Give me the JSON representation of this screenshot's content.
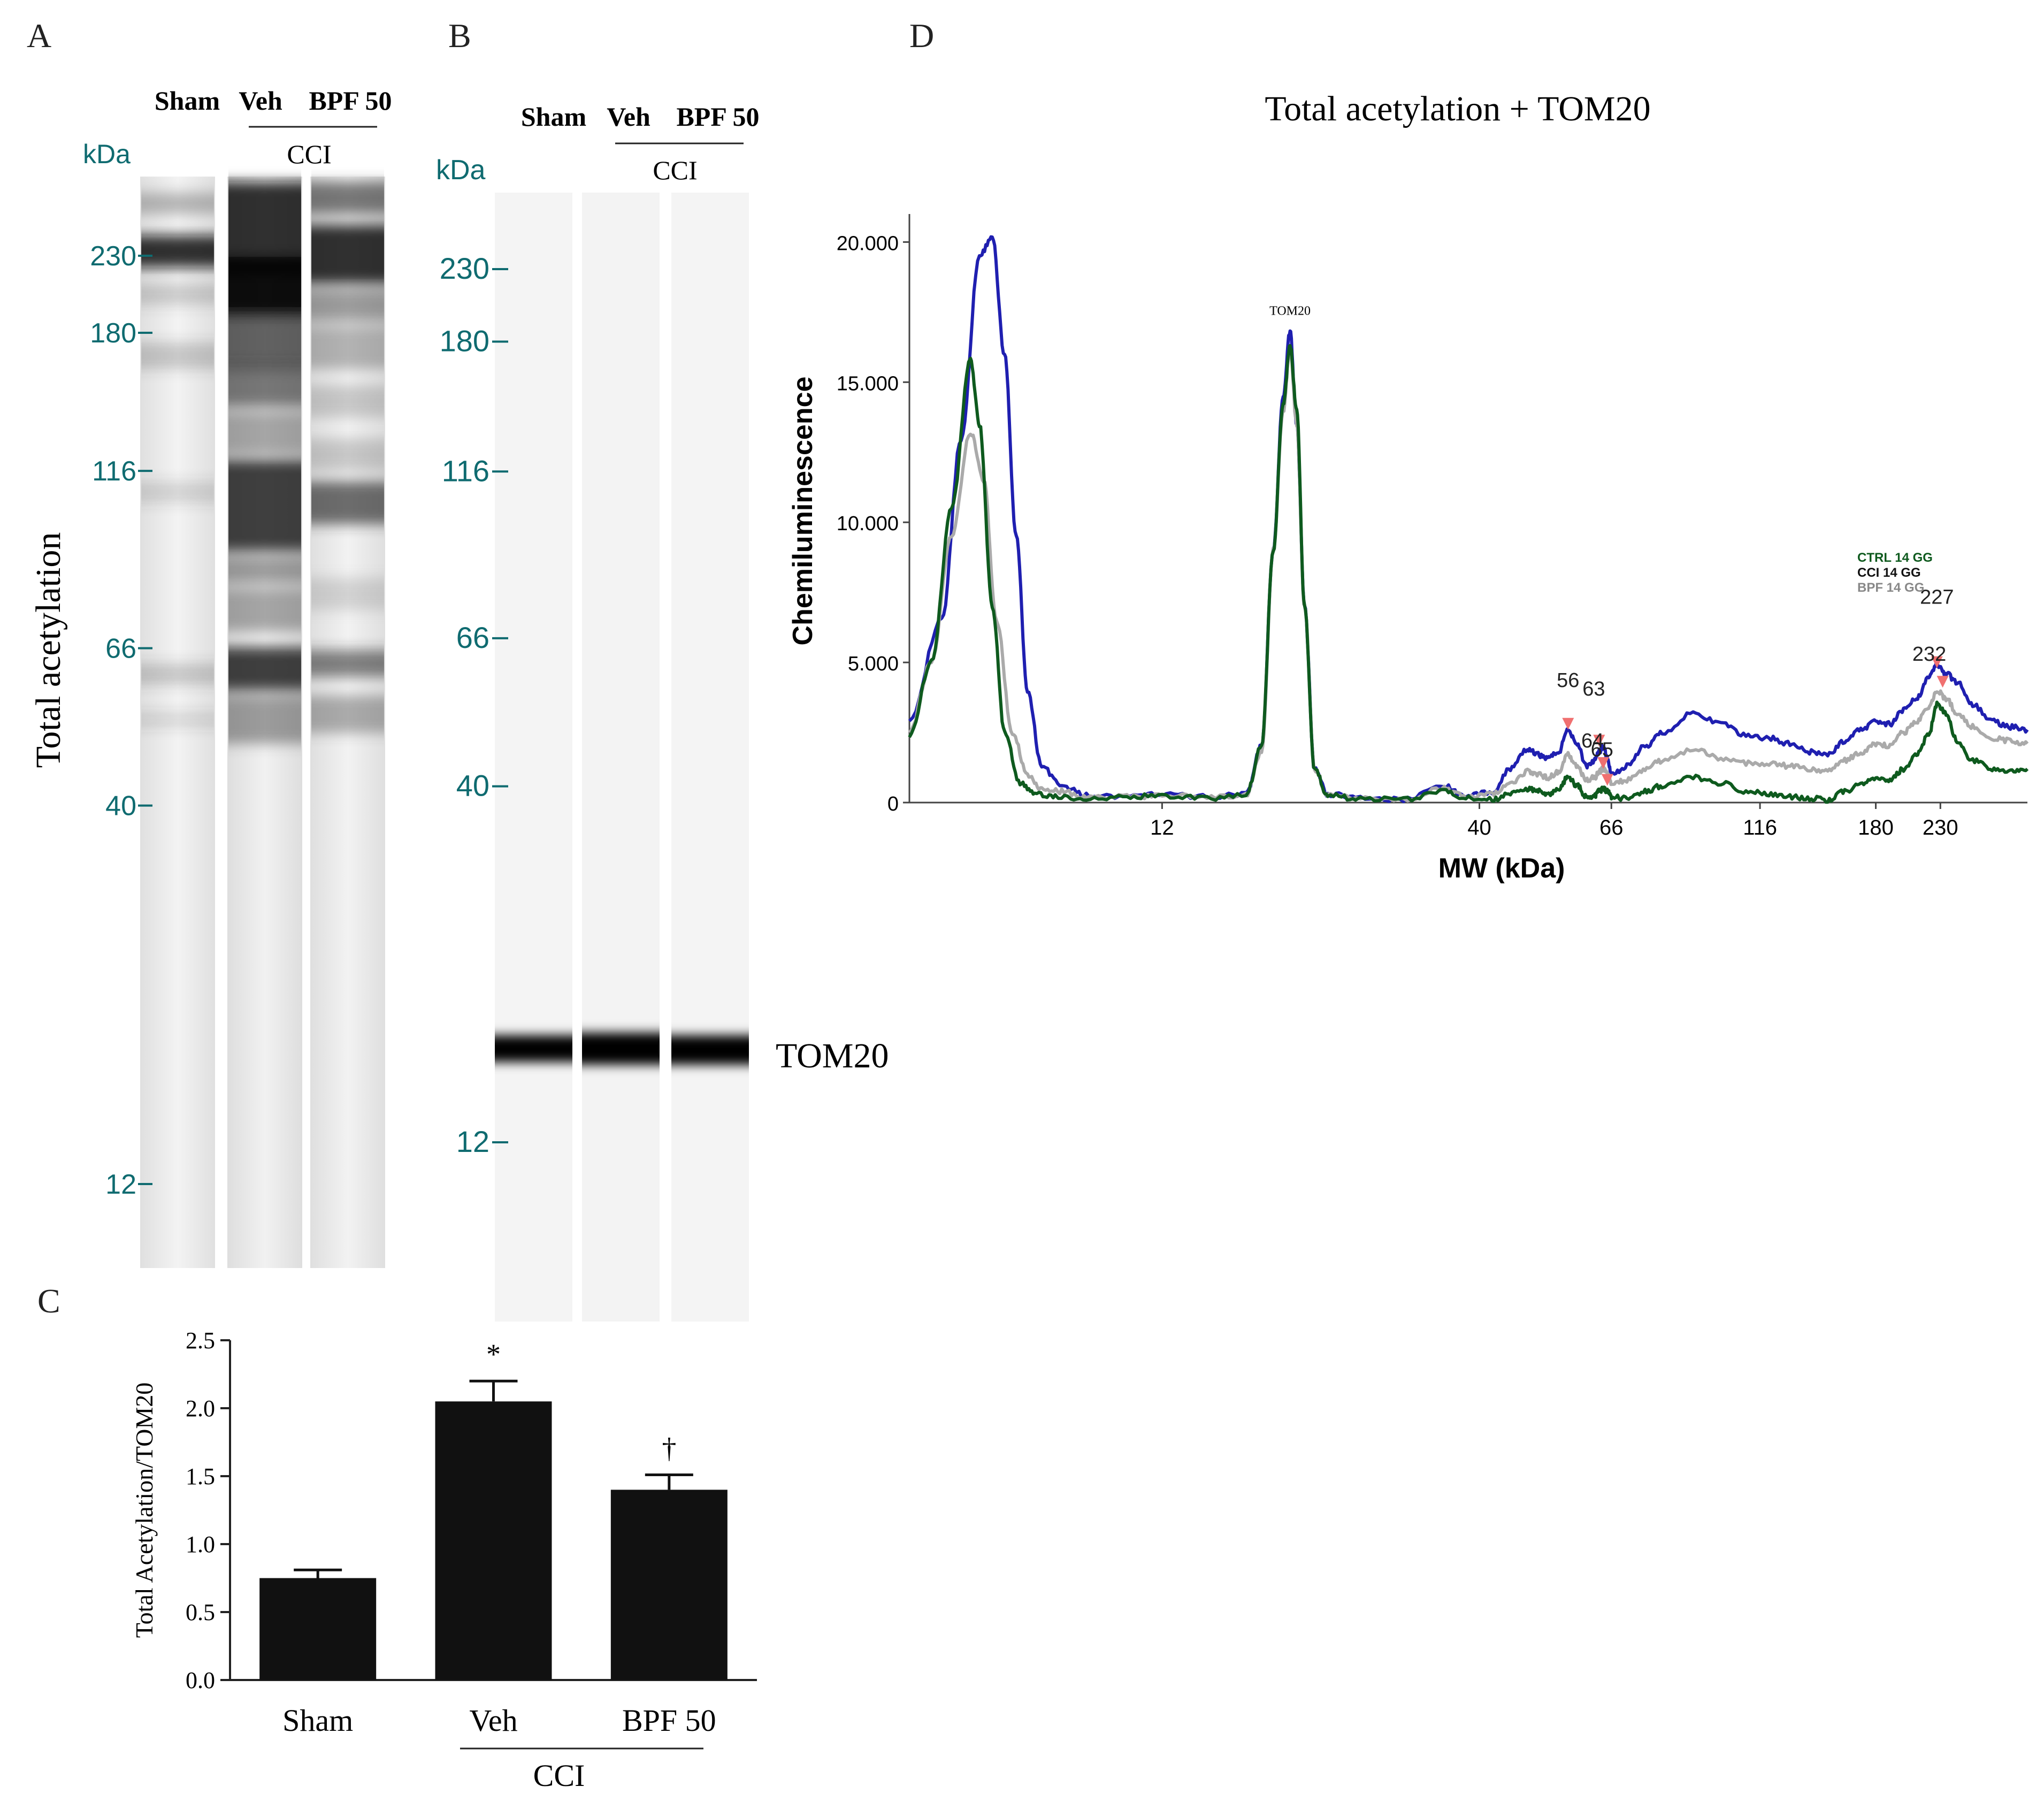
{
  "panels": {
    "a": {
      "letter": "A",
      "group_label": "CCI",
      "kda_label": "kDa",
      "y_title": "Total acetylation",
      "lanes": [
        "Sham",
        "Veh",
        "BPF 50"
      ],
      "markers": [
        {
          "label": "230",
          "kda": 230
        },
        {
          "label": "180",
          "kda": 180
        },
        {
          "label": "116",
          "kda": 116
        },
        {
          "label": "66",
          "kda": 66
        },
        {
          "label": "40",
          "kda": 40
        },
        {
          "label": "12",
          "kda": 12
        }
      ],
      "marker_color": "#0f6b70"
    },
    "b": {
      "letter": "B",
      "group_label": "CCI",
      "kda_label": "kDa",
      "band_label": "TOM20",
      "lanes": [
        "Sham",
        "Veh",
        "BPF 50"
      ],
      "markers": [
        {
          "label": "230",
          "kda": 230
        },
        {
          "label": "180",
          "kda": 180
        },
        {
          "label": "116",
          "kda": 116
        },
        {
          "label": "66",
          "kda": 66
        },
        {
          "label": "40",
          "kda": 40
        },
        {
          "label": "12",
          "kda": 12
        }
      ]
    },
    "c": {
      "letter": "C"
    },
    "d": {
      "letter": "D"
    }
  },
  "chart_data": [
    {
      "id": "C",
      "type": "bar",
      "title": "",
      "xlabel": "",
      "ylabel": "Total Acetylation/TOM20",
      "categories": [
        "Sham",
        "Veh",
        "BPF 50"
      ],
      "values": [
        0.75,
        2.05,
        1.4
      ],
      "errors": [
        0.06,
        0.15,
        0.11
      ],
      "annotations": [
        "",
        "*",
        "†"
      ],
      "group_label": "CCI",
      "ylim": [
        0,
        2.5
      ],
      "yticks": [
        {
          "value": 0.0,
          "label": "0.0"
        },
        {
          "value": 0.5,
          "label": "0.5"
        },
        {
          "value": 1.0,
          "label": "1.0"
        },
        {
          "value": 1.5,
          "label": "1.5"
        },
        {
          "value": 2.0,
          "label": "2.0"
        },
        {
          "value": 2.5,
          "label": "2.5"
        }
      ],
      "bar_color": "#111111"
    },
    {
      "id": "D",
      "type": "line",
      "title": "Total acetylation + TOM20",
      "xlabel": "MW (kDa)",
      "ylabel": "Chemiluminescence",
      "x_scale": "log",
      "xlim": [
        4.6,
        320
      ],
      "ylim": [
        0,
        21000
      ],
      "xticks": [
        {
          "value": 12,
          "label": "12"
        },
        {
          "value": 40,
          "label": "40"
        },
        {
          "value": 66,
          "label": "66"
        },
        {
          "value": 116,
          "label": "116"
        },
        {
          "value": 180,
          "label": "180"
        },
        {
          "value": 230,
          "label": "230"
        }
      ],
      "yticks": [
        {
          "value": 0,
          "label": "0"
        },
        {
          "value": 5000,
          "label": "5.000"
        },
        {
          "value": 10000,
          "label": "10.000"
        },
        {
          "value": 15000,
          "label": "15.000"
        },
        {
          "value": 20000,
          "label": "20.000"
        }
      ],
      "legend": [
        {
          "name": "CTRL 14 GG",
          "color": "#0e5a1e"
        },
        {
          "name": "CCI 14 GG",
          "color": "#111111"
        },
        {
          "name": "BPF 14 GG",
          "color": "#888888"
        }
      ],
      "legend_position": "top-right",
      "peak_label": {
        "text": "TOM20",
        "x": 19.5,
        "y": 17400
      },
      "series": [
        {
          "name": "CCI",
          "color": "#1f1fb0",
          "x": [
            4.6,
            5.2,
            5.6,
            6.0,
            6.3,
            6.6,
            6.9,
            7.2,
            7.6,
            8.2,
            9.0,
            10.5,
            12,
            14,
            16.5,
            17.5,
            18.3,
            19.0,
            19.5,
            20.0,
            20.6,
            21.4,
            22.5,
            25,
            30,
            35,
            38,
            42,
            45,
            48,
            50,
            52,
            54,
            56,
            58,
            60,
            62,
            63,
            64,
            65,
            66,
            70,
            75,
            80,
            90,
            100,
            110,
            120,
            130,
            140,
            150,
            160,
            170,
            180,
            190,
            200,
            210,
            220,
            227,
            235,
            245,
            260,
            280,
            300,
            320
          ],
          "y": [
            3000,
            6500,
            13000,
            19500,
            20200,
            16000,
            9500,
            4000,
            1300,
            600,
            250,
            200,
            300,
            200,
            300,
            2000,
            9000,
            14500,
            16800,
            13500,
            7000,
            1200,
            300,
            200,
            100,
            600,
            200,
            400,
            1200,
            1900,
            1700,
            1600,
            1800,
            2600,
            2100,
            1300,
            1500,
            1800,
            2000,
            1600,
            1000,
            1300,
            2000,
            2500,
            3200,
            2800,
            2400,
            2300,
            2100,
            1800,
            1700,
            2200,
            2600,
            2900,
            2800,
            3300,
            3700,
            4500,
            4900,
            4600,
            4300,
            3500,
            2900,
            2700,
            2600
          ]
        },
        {
          "name": "BPF",
          "color": "#aaaaaa",
          "x": [
            4.6,
            5.0,
            5.4,
            5.8,
            6.1,
            6.4,
            6.8,
            7.2,
            7.6,
            8.2,
            9.0,
            10.5,
            12,
            14,
            16.5,
            17.5,
            18.3,
            19.0,
            19.5,
            20.0,
            20.6,
            21.4,
            22.5,
            25,
            30,
            35,
            38,
            42,
            45,
            48,
            50,
            52,
            54,
            56,
            58,
            60,
            62,
            63,
            64,
            65,
            66,
            70,
            75,
            80,
            90,
            100,
            110,
            120,
            130,
            140,
            150,
            160,
            170,
            180,
            190,
            200,
            210,
            220,
            227,
            235,
            245,
            260,
            280,
            300,
            320
          ],
          "y": [
            2500,
            5000,
            9500,
            13200,
            11500,
            6500,
            2500,
            1000,
            500,
            400,
            200,
            200,
            250,
            200,
            250,
            1800,
            9000,
            14000,
            16200,
            13500,
            7000,
            1200,
            250,
            200,
            100,
            500,
            200,
            300,
            700,
            1100,
            1000,
            900,
            1100,
            1700,
            1300,
            800,
            900,
            1100,
            1200,
            1000,
            700,
            800,
            1200,
            1500,
            1900,
            1600,
            1400,
            1400,
            1300,
            1200,
            1100,
            1500,
            1800,
            2100,
            2000,
            2500,
            2900,
            3400,
            4000,
            3700,
            3200,
            2700,
            2300,
            2200,
            2100
          ]
        },
        {
          "name": "CTRL",
          "color": "#0e5a1e",
          "x": [
            4.6,
            5.0,
            5.4,
            5.8,
            6.0,
            6.3,
            6.6,
            7.0,
            7.4,
            8.0,
            9.0,
            10.5,
            12,
            14,
            16.5,
            17.5,
            18.3,
            19.0,
            19.5,
            20.0,
            20.6,
            21.4,
            22.5,
            25,
            30,
            35,
            38,
            42,
            45,
            48,
            50,
            52,
            54,
            56,
            58,
            60,
            62,
            63,
            64,
            65,
            66,
            70,
            75,
            80,
            90,
            100,
            110,
            120,
            130,
            140,
            150,
            160,
            170,
            180,
            190,
            200,
            210,
            220,
            227,
            235,
            245,
            260,
            280,
            300,
            320
          ],
          "y": [
            2400,
            5000,
            10500,
            15800,
            13500,
            7000,
            2500,
            700,
            300,
            200,
            150,
            200,
            250,
            150,
            250,
            2000,
            9000,
            14200,
            16300,
            14000,
            7000,
            1200,
            250,
            150,
            100,
            400,
            150,
            100,
            300,
            500,
            400,
            300,
            500,
            900,
            600,
            200,
            250,
            400,
            500,
            400,
            200,
            150,
            400,
            600,
            900,
            700,
            400,
            300,
            200,
            150,
            100,
            400,
            700,
            900,
            800,
            1200,
            1700,
            2400,
            3500,
            3200,
            2200,
            1500,
            1200,
            1100,
            1200
          ]
        }
      ],
      "peak_markers": [
        {
          "label": "56",
          "x": 56,
          "y": 2600,
          "dx": 0,
          "dy": -80
        },
        {
          "label": "63",
          "x": 63,
          "y": 2000,
          "dx": -10,
          "dy": -95
        },
        {
          "label": "64",
          "x": 64,
          "y": 1200,
          "dx": -20,
          "dy": -40
        },
        {
          "label": "65",
          "x": 65,
          "y": 600,
          "dx": -10,
          "dy": -55
        },
        {
          "label": "227",
          "x": 227,
          "y": 4800,
          "dx": 0,
          "dy": -120
        },
        {
          "label": "232",
          "x": 232,
          "y": 4100,
          "dx": -25,
          "dy": -50
        }
      ],
      "peak_marker_color": "#f07070"
    }
  ]
}
